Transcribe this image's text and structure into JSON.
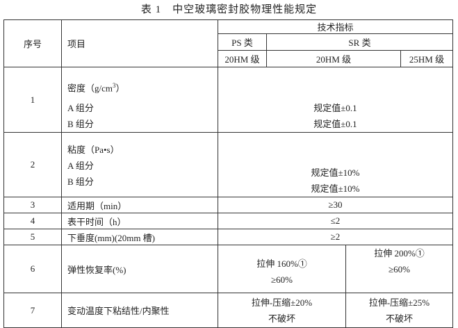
{
  "title": {
    "label": "表 1",
    "text": "中空玻璃密封胶物理性能规定"
  },
  "header": {
    "no": "序号",
    "item": "项目",
    "spec": "技术指标",
    "ps_class": "PS 类",
    "sr_class": "SR 类",
    "ps_grade": "20HM 级",
    "sr_grade_20": "20HM 级",
    "sr_grade_25": "25HM 级"
  },
  "rows": [
    {
      "no": "1",
      "item": "密度（g/cm",
      "item_sup": "3",
      "item_tail": "）",
      "sub_a": "A 组分",
      "sub_b": "B 组分",
      "val_a": "规定值±0.1",
      "val_b": "规定值±0.1"
    },
    {
      "no": "2",
      "item": "粘度（Pa•s）",
      "sub_a": "A 组分",
      "sub_b": "B 组分",
      "val_a": "规定值±10%",
      "val_b": "规定值±10%"
    },
    {
      "no": "3",
      "item": "适用期（min）",
      "value": "≥30"
    },
    {
      "no": "4",
      "item": "表干时间（h）",
      "value": "≤2"
    },
    {
      "no": "5",
      "item": "下垂度(mm)(20mm 槽)",
      "value": "≥2"
    },
    {
      "no": "6",
      "item": "弹性恢复率(%)",
      "v1_line1": "拉伸 160%①",
      "v1_line2": "≥60%",
      "v2_line1": "拉伸 200%①",
      "v2_line2": "≥60%"
    },
    {
      "no": "7",
      "item": "变动温度下粘结性/内聚性",
      "v1_line1": "拉伸-压缩±20%",
      "v1_line2": "不破坏",
      "v2_line1": "拉伸-压缩±25%",
      "v2_line2": "不破坏"
    }
  ]
}
